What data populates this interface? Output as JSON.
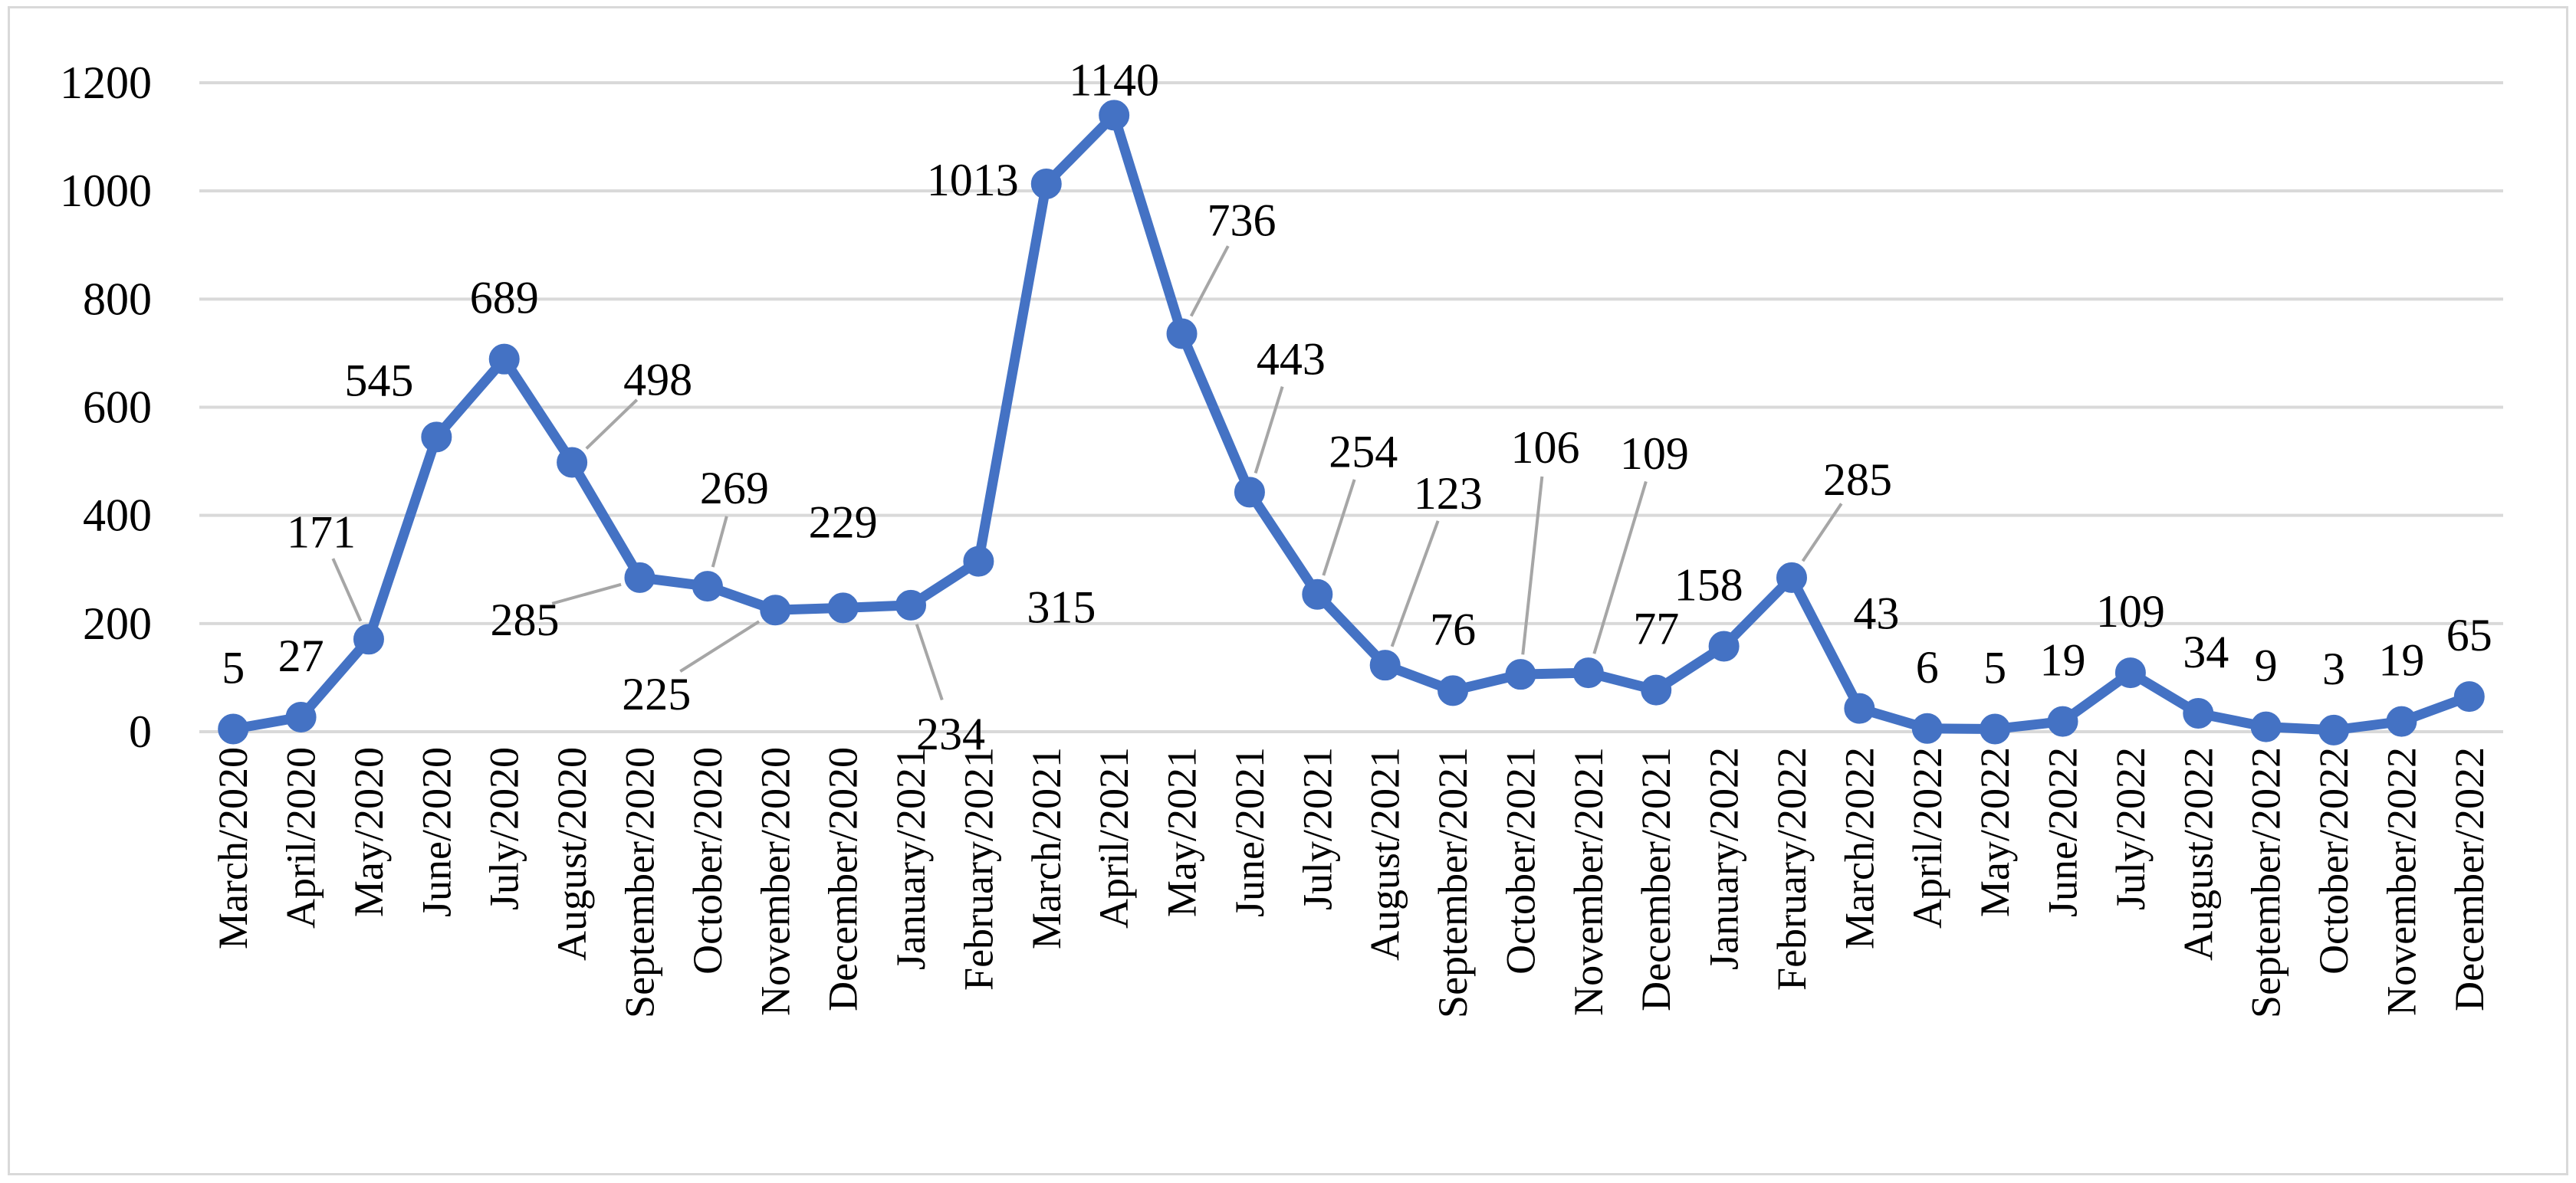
{
  "chart_data": {
    "type": "line",
    "title": "",
    "xlabel": "",
    "ylabel": "",
    "ylim": [
      0,
      1200
    ],
    "yticks": [
      0,
      200,
      400,
      600,
      800,
      1000,
      1200
    ],
    "grid": true,
    "legend": "none",
    "colors": {
      "series": "#4472c4",
      "grid": "#d9d9d9",
      "leader": "#a6a6a6",
      "frame": "#d9d9d9"
    },
    "categories": [
      "March/2020",
      "April/2020",
      "May/2020",
      "June/2020",
      "July/2020",
      "August/2020",
      "September/2020",
      "October/2020",
      "November/2020",
      "December/2020",
      "January/2021",
      "February/2021",
      "March/2021",
      "April/2021",
      "May/2021",
      "June/2021",
      "July/2021",
      "August/2021",
      "September/2021",
      "October/2021",
      "November/2021",
      "December/2021",
      "January/2022",
      "February/2022",
      "March/2022",
      "April/2022",
      "May/2022",
      "June/2022",
      "July/2022",
      "August/2022",
      "September/2022",
      "October/2022",
      "November/2022",
      "December/2022"
    ],
    "series": [
      {
        "values": [
          5,
          27,
          171,
          545,
          689,
          498,
          285,
          269,
          225,
          229,
          234,
          315,
          1013,
          1140,
          736,
          443,
          254,
          123,
          76,
          106,
          109,
          77,
          158,
          285,
          43,
          6,
          5,
          19,
          109,
          34,
          9,
          3,
          19,
          65
        ]
      }
    ]
  }
}
